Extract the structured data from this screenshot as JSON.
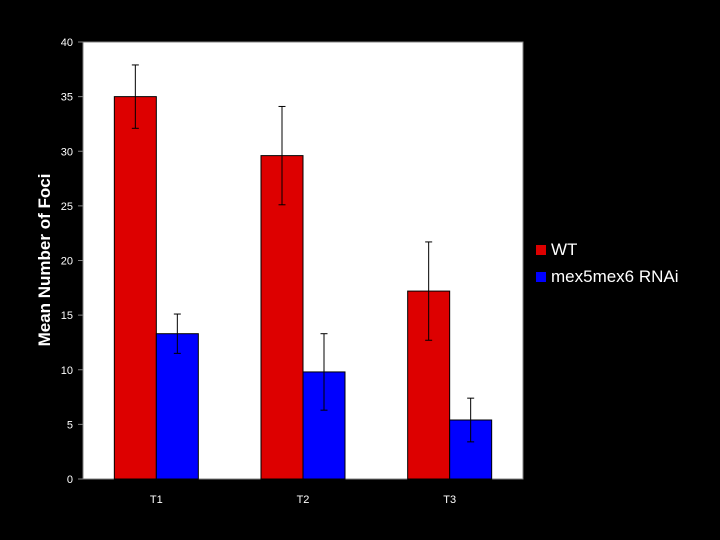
{
  "chart_data": {
    "type": "bar",
    "title": "",
    "xlabel": "",
    "ylabel": "Mean Number of Foci",
    "ylim": [
      0,
      40
    ],
    "yticks": [
      0,
      5,
      10,
      15,
      20,
      25,
      30,
      35,
      40
    ],
    "categories": [
      "T1",
      "T2",
      "T3"
    ],
    "grid": false,
    "legend_position": "right",
    "series": [
      {
        "name": "WT",
        "color": "#dd0000",
        "values": [
          35,
          29.6,
          17.2
        ],
        "errors": [
          2.9,
          4.5,
          4.5
        ]
      },
      {
        "name": "mex5mex6 RNAi",
        "color": "#0000ff",
        "values": [
          13.3,
          9.8,
          5.4
        ],
        "errors": [
          1.8,
          3.5,
          2.0
        ]
      }
    ],
    "background_color": "#000000",
    "plot_background_color": "#ffffff"
  }
}
